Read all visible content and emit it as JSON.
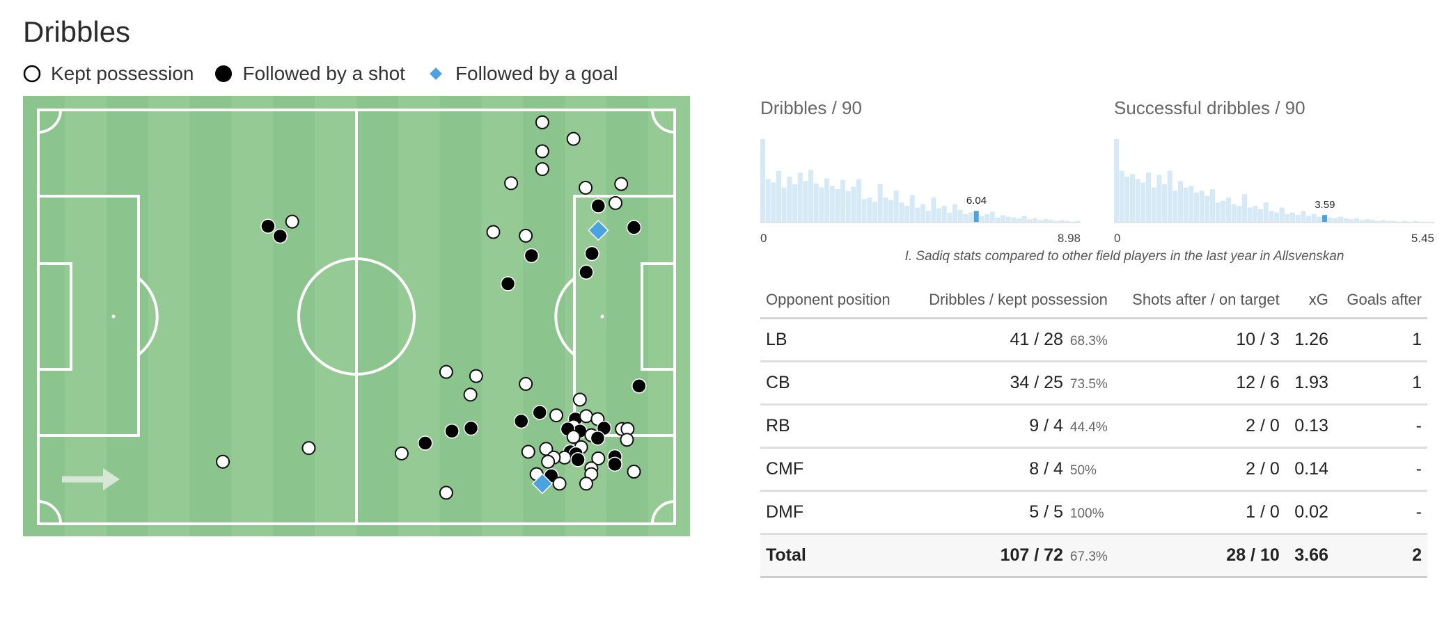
{
  "title": "Dribbles",
  "legend": {
    "kept": "Kept possession",
    "shot": "Followed by a shot",
    "goal": "Followed by a goal"
  },
  "colors": {
    "pitch": "#8bc48c",
    "stripe": "#95ca94",
    "kept": "#ffffff",
    "shot": "#000000",
    "goal": "#4aa3df",
    "histo_bar": "#d6e9f6",
    "histo_highlight": "#4aa3df"
  },
  "chart_data": [
    {
      "type": "scatter",
      "name": "pitch",
      "x_range": [
        0,
        100
      ],
      "y_range": [
        0,
        100
      ],
      "points": [
        {
          "x": 79.2,
          "y": 3.0,
          "kind": "kept"
        },
        {
          "x": 84.1,
          "y": 7.0,
          "kind": "kept"
        },
        {
          "x": 79.2,
          "y": 10.0,
          "kind": "kept"
        },
        {
          "x": 79.2,
          "y": 14.3,
          "kind": "kept"
        },
        {
          "x": 74.3,
          "y": 17.7,
          "kind": "kept"
        },
        {
          "x": 86.0,
          "y": 18.8,
          "kind": "kept"
        },
        {
          "x": 91.6,
          "y": 17.9,
          "kind": "kept"
        },
        {
          "x": 90.7,
          "y": 22.5,
          "kind": "kept"
        },
        {
          "x": 88.0,
          "y": 23.2,
          "kind": "shot"
        },
        {
          "x": 88.0,
          "y": 29.1,
          "kind": "goal"
        },
        {
          "x": 93.6,
          "y": 28.4,
          "kind": "shot"
        },
        {
          "x": 71.5,
          "y": 29.5,
          "kind": "kept"
        },
        {
          "x": 76.6,
          "y": 30.4,
          "kind": "kept"
        },
        {
          "x": 77.5,
          "y": 35.2,
          "kind": "shot"
        },
        {
          "x": 87.0,
          "y": 34.7,
          "kind": "shot"
        },
        {
          "x": 86.1,
          "y": 39.2,
          "kind": "shot"
        },
        {
          "x": 73.8,
          "y": 42.0,
          "kind": "shot"
        },
        {
          "x": 39.9,
          "y": 27.0,
          "kind": "kept"
        },
        {
          "x": 36.1,
          "y": 28.1,
          "kind": "shot"
        },
        {
          "x": 38.0,
          "y": 30.5,
          "kind": "shot"
        },
        {
          "x": 64.1,
          "y": 63.3,
          "kind": "kept"
        },
        {
          "x": 68.8,
          "y": 64.3,
          "kind": "kept"
        },
        {
          "x": 76.6,
          "y": 66.2,
          "kind": "kept"
        },
        {
          "x": 94.4,
          "y": 66.7,
          "kind": "shot"
        },
        {
          "x": 67.9,
          "y": 68.8,
          "kind": "kept"
        },
        {
          "x": 85.1,
          "y": 70.0,
          "kind": "kept"
        },
        {
          "x": 78.8,
          "y": 73.1,
          "kind": "shot"
        },
        {
          "x": 81.4,
          "y": 73.8,
          "kind": "kept"
        },
        {
          "x": 75.9,
          "y": 75.2,
          "kind": "shot"
        },
        {
          "x": 84.4,
          "y": 74.7,
          "kind": "shot"
        },
        {
          "x": 86.1,
          "y": 74.0,
          "kind": "kept"
        },
        {
          "x": 87.9,
          "y": 74.7,
          "kind": "kept"
        },
        {
          "x": 84.1,
          "y": 76.4,
          "kind": "kept"
        },
        {
          "x": 85.1,
          "y": 77.6,
          "kind": "shot"
        },
        {
          "x": 83.2,
          "y": 77.1,
          "kind": "shot"
        },
        {
          "x": 88.9,
          "y": 76.9,
          "kind": "shot"
        },
        {
          "x": 91.7,
          "y": 77.1,
          "kind": "kept"
        },
        {
          "x": 92.6,
          "y": 77.1,
          "kind": "kept"
        },
        {
          "x": 86.9,
          "y": 78.6,
          "kind": "kept"
        },
        {
          "x": 84.1,
          "y": 79.0,
          "kind": "kept"
        },
        {
          "x": 87.9,
          "y": 79.3,
          "kind": "shot"
        },
        {
          "x": 92.5,
          "y": 79.7,
          "kind": "kept"
        },
        {
          "x": 68.0,
          "y": 76.9,
          "kind": "shot"
        },
        {
          "x": 65.0,
          "y": 77.6,
          "kind": "shot"
        },
        {
          "x": 60.8,
          "y": 80.5,
          "kind": "shot"
        },
        {
          "x": 57.1,
          "y": 83.0,
          "kind": "kept"
        },
        {
          "x": 42.5,
          "y": 81.7,
          "kind": "kept"
        },
        {
          "x": 29.0,
          "y": 85.0,
          "kind": "kept"
        },
        {
          "x": 85.3,
          "y": 81.5,
          "kind": "kept"
        },
        {
          "x": 79.8,
          "y": 81.9,
          "kind": "kept"
        },
        {
          "x": 77.0,
          "y": 82.6,
          "kind": "kept"
        },
        {
          "x": 83.6,
          "y": 82.6,
          "kind": "shot"
        },
        {
          "x": 84.5,
          "y": 83.1,
          "kind": "shot"
        },
        {
          "x": 82.7,
          "y": 84.0,
          "kind": "kept"
        },
        {
          "x": 81.0,
          "y": 84.0,
          "kind": "kept"
        },
        {
          "x": 80.1,
          "y": 85.0,
          "kind": "kept"
        },
        {
          "x": 84.8,
          "y": 84.5,
          "kind": "shot"
        },
        {
          "x": 88.0,
          "y": 84.2,
          "kind": "kept"
        },
        {
          "x": 90.6,
          "y": 83.8,
          "kind": "shot"
        },
        {
          "x": 90.6,
          "y": 85.6,
          "kind": "shot"
        },
        {
          "x": 86.9,
          "y": 86.6,
          "kind": "kept"
        },
        {
          "x": 86.9,
          "y": 88.0,
          "kind": "kept"
        },
        {
          "x": 93.6,
          "y": 87.4,
          "kind": "kept"
        },
        {
          "x": 78.3,
          "y": 88.0,
          "kind": "kept"
        },
        {
          "x": 80.6,
          "y": 88.4,
          "kind": "shot"
        },
        {
          "x": 79.2,
          "y": 90.3,
          "kind": "goal"
        },
        {
          "x": 81.9,
          "y": 90.3,
          "kind": "kept"
        },
        {
          "x": 86.1,
          "y": 90.3,
          "kind": "kept"
        },
        {
          "x": 64.1,
          "y": 92.5,
          "kind": "kept"
        }
      ]
    },
    {
      "type": "bar",
      "name": "dribbles-per-90",
      "title": "Dribbles / 90",
      "xlim": [
        0,
        8.98
      ],
      "tick_labels": [
        "0",
        "8.98"
      ],
      "highlight": {
        "value": 6.04,
        "label": "6.04"
      },
      "values": [
        1.0,
        0.52,
        0.48,
        0.62,
        0.42,
        0.55,
        0.46,
        0.6,
        0.5,
        0.63,
        0.47,
        0.42,
        0.53,
        0.44,
        0.4,
        0.51,
        0.38,
        0.43,
        0.52,
        0.28,
        0.3,
        0.25,
        0.46,
        0.3,
        0.27,
        0.38,
        0.24,
        0.2,
        0.33,
        0.18,
        0.22,
        0.14,
        0.3,
        0.17,
        0.2,
        0.12,
        0.22,
        0.15,
        0.1,
        0.12,
        0.14,
        0.08,
        0.1,
        0.13,
        0.06,
        0.09,
        0.07,
        0.06,
        0.05,
        0.08,
        0.04,
        0.05,
        0.03,
        0.04,
        0.03,
        0.02,
        0.03,
        0.02,
        0.01,
        0.02
      ]
    },
    {
      "type": "bar",
      "name": "successful-dribbles-per-90",
      "title": "Successful dribbles / 90",
      "xlim": [
        0,
        5.45
      ],
      "tick_labels": [
        "0",
        "5.45"
      ],
      "highlight": {
        "value": 3.59,
        "label": "3.59"
      },
      "values": [
        1.0,
        0.62,
        0.55,
        0.58,
        0.52,
        0.48,
        0.6,
        0.42,
        0.57,
        0.46,
        0.62,
        0.38,
        0.5,
        0.42,
        0.44,
        0.36,
        0.38,
        0.32,
        0.4,
        0.24,
        0.26,
        0.3,
        0.22,
        0.2,
        0.34,
        0.18,
        0.2,
        0.16,
        0.24,
        0.14,
        0.12,
        0.18,
        0.1,
        0.12,
        0.09,
        0.14,
        0.08,
        0.1,
        0.07,
        0.09,
        0.06,
        0.05,
        0.07,
        0.05,
        0.04,
        0.05,
        0.03,
        0.04,
        0.03,
        0.02,
        0.03,
        0.02,
        0.02,
        0.01,
        0.02,
        0.01,
        0.02,
        0.01,
        0.01,
        0.01
      ]
    }
  ],
  "caption": "I. Sadiq stats compared to other field players in the last year in Allsvenskan",
  "table": {
    "headers": [
      "Opponent position",
      "Dribbles / kept possession",
      "Shots after / on target",
      "xG",
      "Goals after"
    ],
    "rows": [
      {
        "pos": "LB",
        "dribbles": "41 / 28",
        "pct": "68.3%",
        "shots": "10 / 3",
        "xg": "1.26",
        "goals": "1"
      },
      {
        "pos": "CB",
        "dribbles": "34 / 25",
        "pct": "73.5%",
        "shots": "12 / 6",
        "xg": "1.93",
        "goals": "1"
      },
      {
        "pos": "RB",
        "dribbles": "9 / 4",
        "pct": "44.4%",
        "shots": "2 / 0",
        "xg": "0.13",
        "goals": "-"
      },
      {
        "pos": "CMF",
        "dribbles": "8 / 4",
        "pct": "50%",
        "shots": "2 / 0",
        "xg": "0.14",
        "goals": "-"
      },
      {
        "pos": "DMF",
        "dribbles": "5 / 5",
        "pct": "100%",
        "shots": "1 / 0",
        "xg": "0.02",
        "goals": "-"
      }
    ],
    "total": {
      "pos": "Total",
      "dribbles": "107 / 72",
      "pct": "67.3%",
      "shots": "28 / 10",
      "xg": "3.66",
      "goals": "2"
    }
  }
}
